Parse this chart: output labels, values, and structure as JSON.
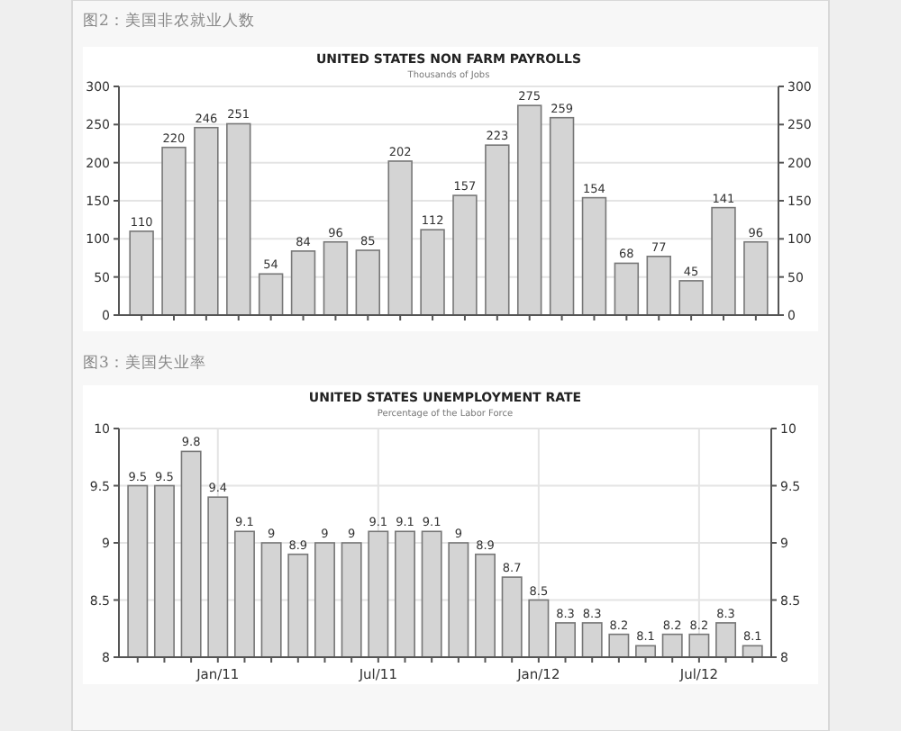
{
  "chart_data": [
    {
      "type": "bar",
      "title": "UNITED STATES NON FARM PAYROLLS",
      "subtitle": "Thousands of Jobs",
      "annotations": [
        "图2：美国非农就业人数"
      ],
      "categories": [
        null,
        null,
        null,
        null,
        null,
        null,
        null,
        null,
        null,
        null,
        null,
        null,
        null,
        null,
        null,
        null,
        null,
        null,
        null,
        null
      ],
      "values": [
        110,
        220,
        246,
        251,
        54,
        84,
        96,
        85,
        202,
        112,
        157,
        223,
        275,
        259,
        154,
        68,
        77,
        45,
        141,
        96
      ],
      "color": "#d4d4d4",
      "data_labels": true,
      "grid": "y",
      "ylim": [
        0,
        300
      ],
      "yticks": [
        0,
        50,
        100,
        150,
        200,
        250,
        300
      ],
      "y2lim": [
        0,
        300
      ],
      "y2ticks": [
        0,
        50,
        100,
        150,
        200,
        250,
        300
      ]
    },
    {
      "type": "bar",
      "title": "UNITED STATES UNEMPLOYMENT RATE",
      "subtitle": "Percentage of the Labor Force",
      "annotations": [
        "图3：美国失业率"
      ],
      "categories": [
        null,
        null,
        null,
        "Jan/11",
        null,
        null,
        null,
        null,
        null,
        "Jul/11",
        null,
        null,
        null,
        null,
        null,
        "Jan/12",
        null,
        null,
        null,
        null,
        null,
        "Jul/12",
        null,
        null
      ],
      "values": [
        9.5,
        9.5,
        9.8,
        9.4,
        9.1,
        9,
        8.9,
        9,
        9,
        9.1,
        9.1,
        9.1,
        9,
        8.9,
        8.7,
        8.5,
        8.3,
        8.3,
        8.2,
        8.1,
        8.2,
        8.2,
        8.3,
        8.1
      ],
      "color": "#d4d4d4",
      "data_labels": true,
      "grid": true,
      "ylim": [
        8,
        10
      ],
      "yticks": [
        8,
        8.5,
        9,
        9.5,
        10
      ],
      "y2lim": [
        8,
        10
      ],
      "y2ticks": [
        8,
        8.5,
        9,
        9.5,
        10
      ]
    }
  ]
}
